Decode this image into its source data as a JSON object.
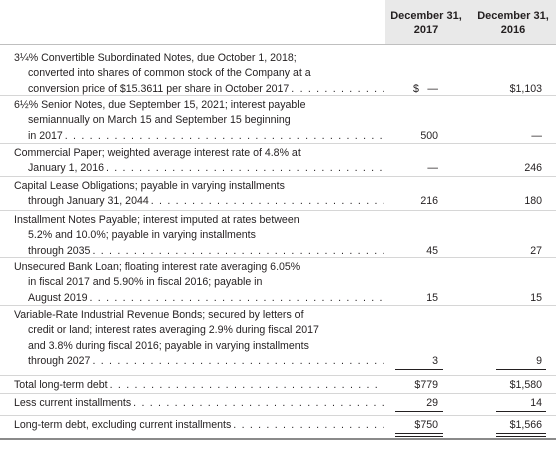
{
  "header": {
    "col1": "December 31, 2017",
    "col2": "December 31, 2016"
  },
  "rows": [
    {
      "lines": [
        "3¼% Convertible Subordinated Notes, due October 1, 2018;",
        "converted into shares of common stock of the Company at a",
        "conversion price of $15.3611 per share in October 2017"
      ],
      "dollar1": "$",
      "v2017": "—",
      "v2016": "$1,103"
    },
    {
      "lines": [
        "6½% Senior Notes, due September 15, 2021; interest payable",
        "semiannually on March 15 and September 15 beginning",
        "in 2017"
      ],
      "v2017": "500",
      "v2016": "—"
    },
    {
      "lines": [
        "Commercial Paper; weighted average interest rate of 4.8% at",
        "January 1, 2016"
      ],
      "v2017": "—",
      "v2016": "246"
    },
    {
      "lines": [
        "Capital Lease Obligations; payable in varying installments",
        "through January 31, 2044"
      ],
      "v2017": "216",
      "v2016": "180"
    },
    {
      "lines": [
        "Installment Notes Payable; interest imputed at rates between",
        "5.2% and 10.0%; payable in varying installments",
        "through 2035"
      ],
      "v2017": "45",
      "v2016": "27"
    },
    {
      "lines": [
        "Unsecured Bank Loan; floating interest rate averaging 6.05%",
        "in fiscal 2017 and 5.90% in fiscal 2016; payable in",
        "August 2019"
      ],
      "v2017": "15",
      "v2016": "15"
    },
    {
      "lines": [
        "Variable-Rate Industrial Revenue Bonds; secured by letters of",
        "credit or land; interest rates averaging 2.9% during fiscal 2017",
        "and 3.8% during fiscal 2016; payable in varying installments",
        "through 2027"
      ],
      "v2017": "3",
      "v2016": "9"
    },
    {
      "lines": [
        "Total long-term debt"
      ],
      "v2017": "$779",
      "v2016": "$1,580"
    },
    {
      "lines": [
        "Less current installments"
      ],
      "v2017": "29",
      "v2016": "14"
    },
    {
      "lines": [
        "Long-term debt, excluding current installments"
      ],
      "v2017": "$750",
      "v2016": "$1,566"
    }
  ]
}
